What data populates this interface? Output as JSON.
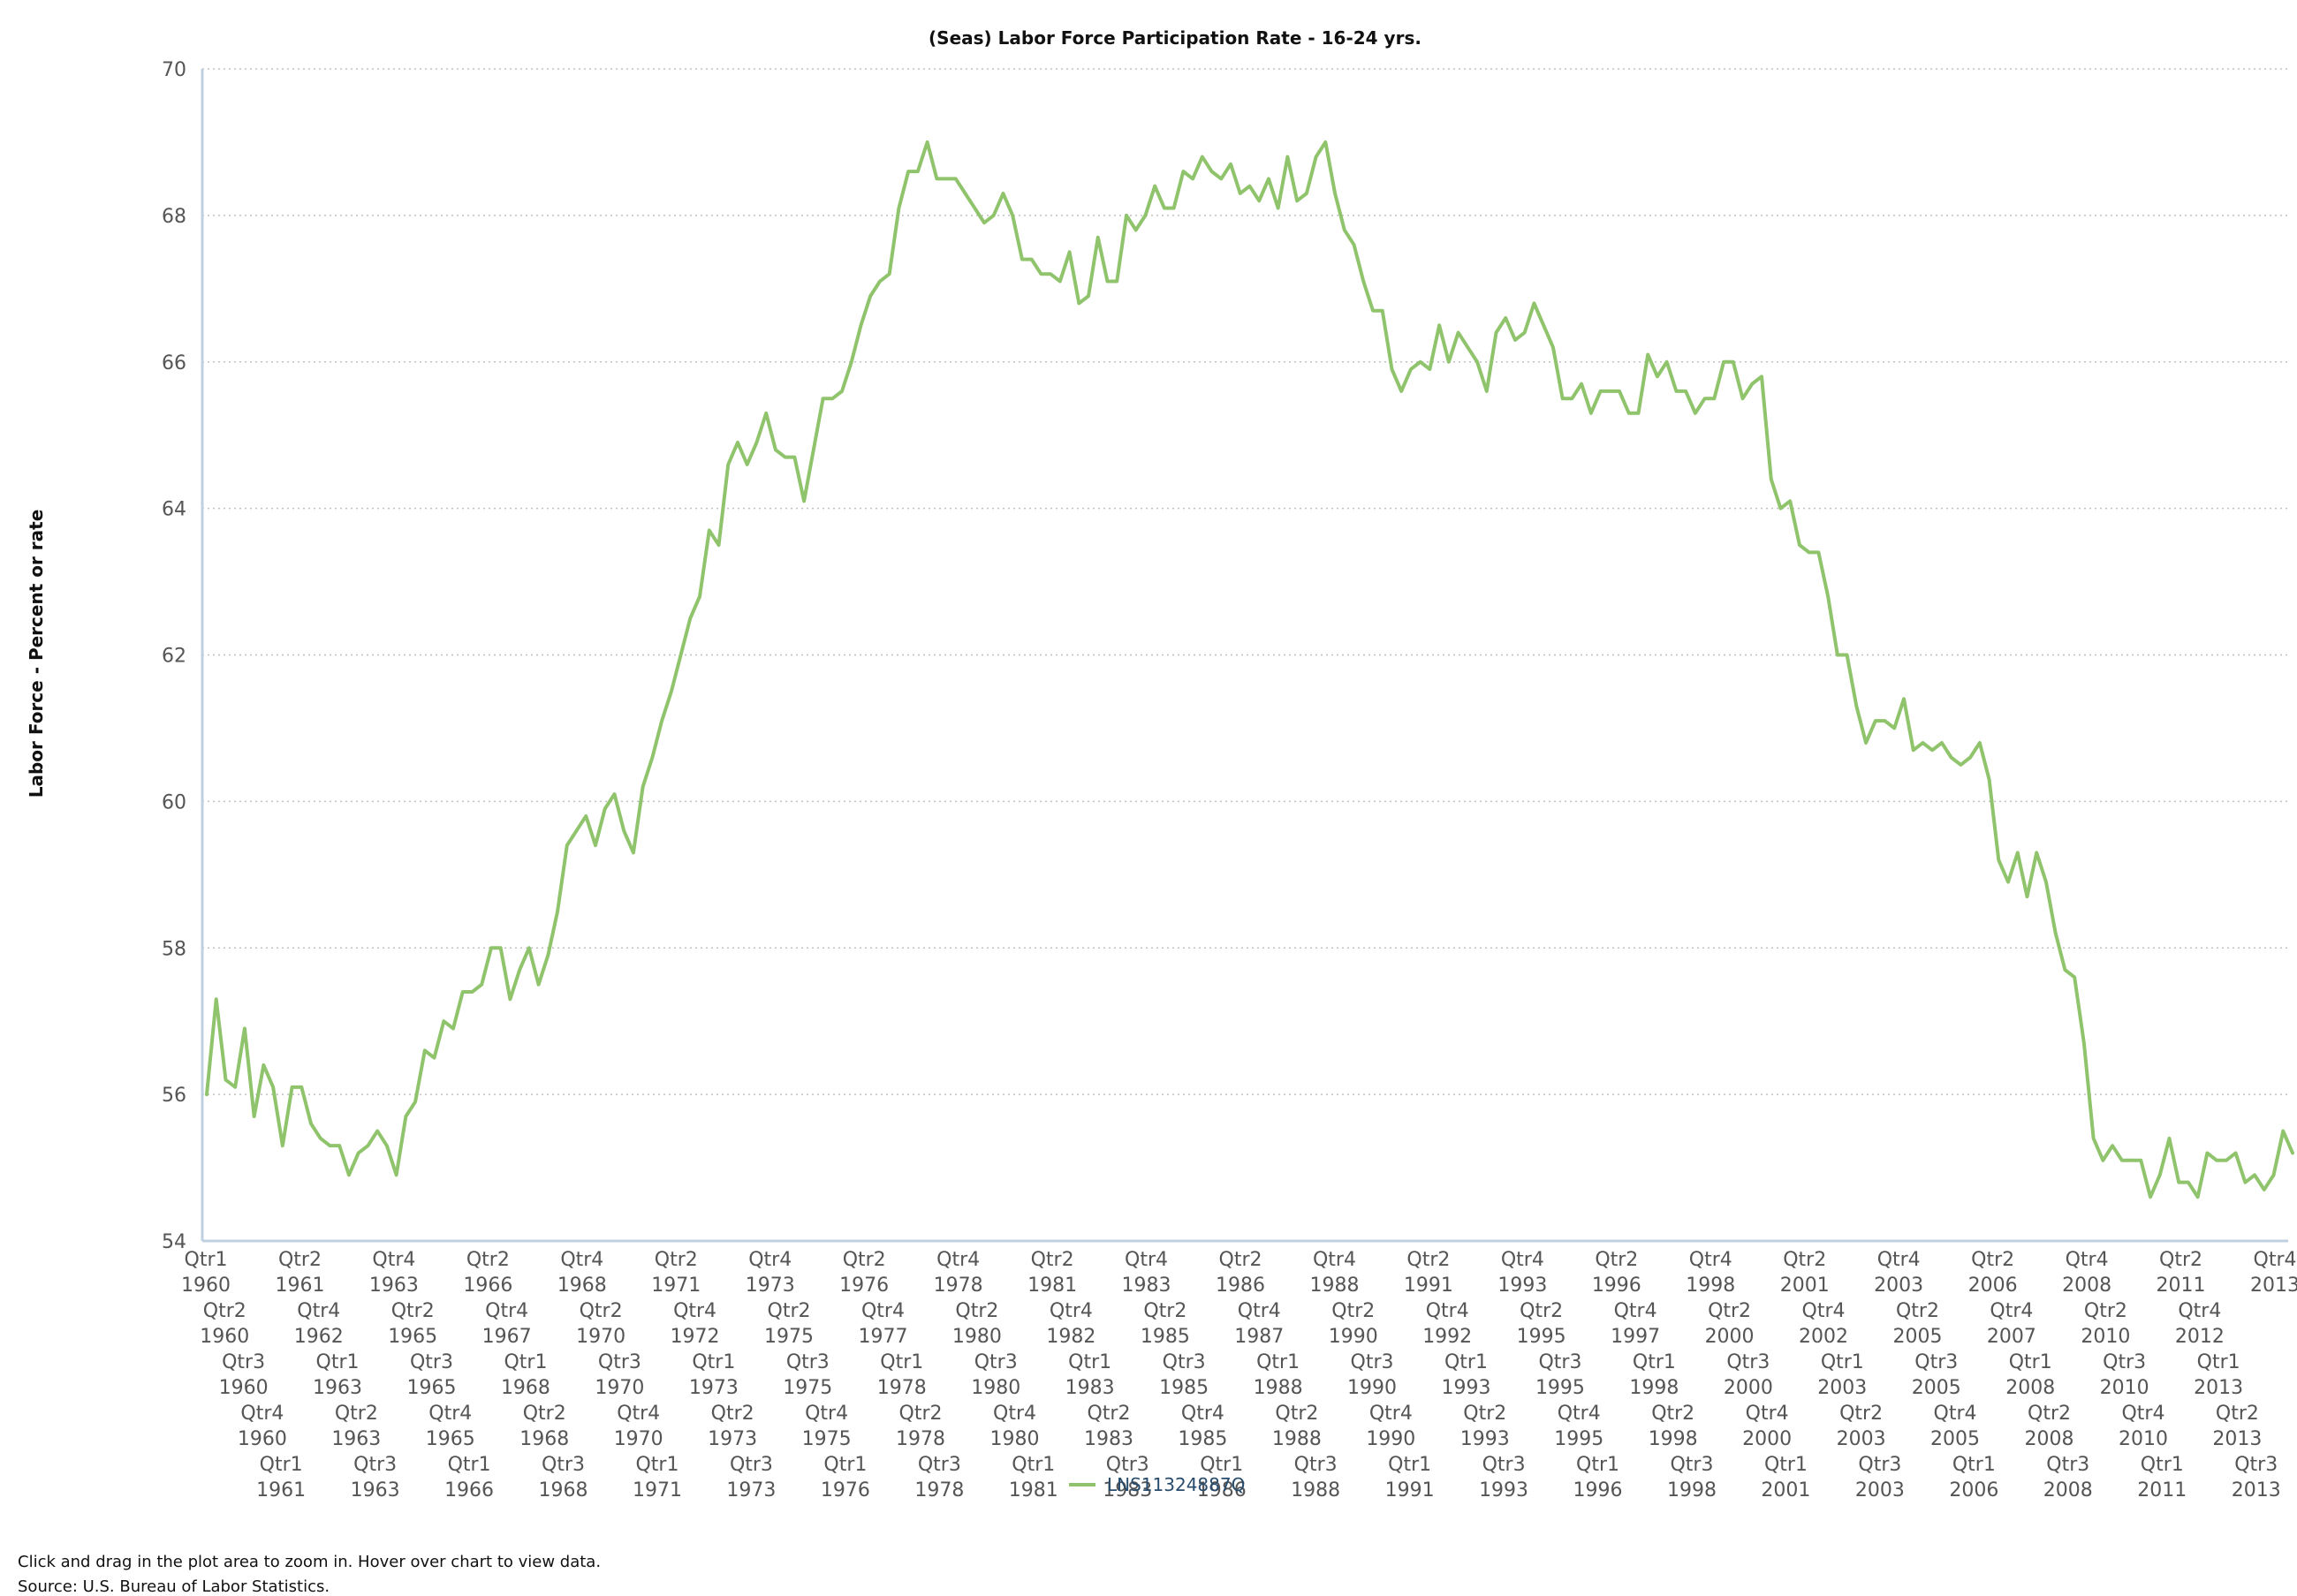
{
  "chart_data": {
    "type": "line",
    "title": "(Seas) Labor Force Participation Rate - 16-24 yrs.",
    "ylabel": "Labor Force - Percent or rate",
    "xlabel": "",
    "ylim": [
      54,
      70
    ],
    "y_ticks": [
      54,
      56,
      58,
      60,
      62,
      64,
      66,
      68,
      70
    ],
    "grid": "horizontal-dotted",
    "legend_position": "bottom-center",
    "x_start": "1960 Qtr1",
    "x_end": "2014 Qtr2",
    "x_tick_labels": [
      {
        "quarter": "Qtr1",
        "year": "1960"
      },
      {
        "quarter": "Qtr2",
        "year": "1960"
      },
      {
        "quarter": "Qtr3",
        "year": "1960"
      },
      {
        "quarter": "Qtr4",
        "year": "1960"
      },
      {
        "quarter": "Qtr1",
        "year": "1961"
      },
      {
        "quarter": "Qtr2",
        "year": "1961"
      },
      {
        "quarter": "Qtr4",
        "year": "1962"
      },
      {
        "quarter": "Qtr1",
        "year": "1963"
      },
      {
        "quarter": "Qtr2",
        "year": "1963"
      },
      {
        "quarter": "Qtr3",
        "year": "1963"
      },
      {
        "quarter": "Qtr4",
        "year": "1963"
      },
      {
        "quarter": "Qtr2",
        "year": "1965"
      },
      {
        "quarter": "Qtr3",
        "year": "1965"
      },
      {
        "quarter": "Qtr4",
        "year": "1965"
      },
      {
        "quarter": "Qtr1",
        "year": "1966"
      },
      {
        "quarter": "Qtr2",
        "year": "1966"
      },
      {
        "quarter": "Qtr4",
        "year": "1967"
      },
      {
        "quarter": "Qtr1",
        "year": "1968"
      },
      {
        "quarter": "Qtr2",
        "year": "1968"
      },
      {
        "quarter": "Qtr3",
        "year": "1968"
      },
      {
        "quarter": "Qtr4",
        "year": "1968"
      },
      {
        "quarter": "Qtr2",
        "year": "1970"
      },
      {
        "quarter": "Qtr3",
        "year": "1970"
      },
      {
        "quarter": "Qtr4",
        "year": "1970"
      },
      {
        "quarter": "Qtr1",
        "year": "1971"
      },
      {
        "quarter": "Qtr2",
        "year": "1971"
      },
      {
        "quarter": "Qtr4",
        "year": "1972"
      },
      {
        "quarter": "Qtr1",
        "year": "1973"
      },
      {
        "quarter": "Qtr2",
        "year": "1973"
      },
      {
        "quarter": "Qtr3",
        "year": "1973"
      },
      {
        "quarter": "Qtr4",
        "year": "1973"
      },
      {
        "quarter": "Qtr2",
        "year": "1975"
      },
      {
        "quarter": "Qtr3",
        "year": "1975"
      },
      {
        "quarter": "Qtr4",
        "year": "1975"
      },
      {
        "quarter": "Qtr1",
        "year": "1976"
      },
      {
        "quarter": "Qtr2",
        "year": "1976"
      },
      {
        "quarter": "Qtr4",
        "year": "1977"
      },
      {
        "quarter": "Qtr1",
        "year": "1978"
      },
      {
        "quarter": "Qtr2",
        "year": "1978"
      },
      {
        "quarter": "Qtr3",
        "year": "1978"
      },
      {
        "quarter": "Qtr4",
        "year": "1978"
      },
      {
        "quarter": "Qtr2",
        "year": "1980"
      },
      {
        "quarter": "Qtr3",
        "year": "1980"
      },
      {
        "quarter": "Qtr4",
        "year": "1980"
      },
      {
        "quarter": "Qtr1",
        "year": "1981"
      },
      {
        "quarter": "Qtr2",
        "year": "1981"
      },
      {
        "quarter": "Qtr4",
        "year": "1982"
      },
      {
        "quarter": "Qtr1",
        "year": "1983"
      },
      {
        "quarter": "Qtr2",
        "year": "1983"
      },
      {
        "quarter": "Qtr3",
        "year": "1983"
      },
      {
        "quarter": "Qtr4",
        "year": "1983"
      },
      {
        "quarter": "Qtr2",
        "year": "1985"
      },
      {
        "quarter": "Qtr3",
        "year": "1985"
      },
      {
        "quarter": "Qtr4",
        "year": "1985"
      },
      {
        "quarter": "Qtr1",
        "year": "1986"
      },
      {
        "quarter": "Qtr2",
        "year": "1986"
      },
      {
        "quarter": "Qtr4",
        "year": "1987"
      },
      {
        "quarter": "Qtr1",
        "year": "1988"
      },
      {
        "quarter": "Qtr2",
        "year": "1988"
      },
      {
        "quarter": "Qtr3",
        "year": "1988"
      },
      {
        "quarter": "Qtr4",
        "year": "1988"
      },
      {
        "quarter": "Qtr2",
        "year": "1990"
      },
      {
        "quarter": "Qtr3",
        "year": "1990"
      },
      {
        "quarter": "Qtr4",
        "year": "1990"
      },
      {
        "quarter": "Qtr1",
        "year": "1991"
      },
      {
        "quarter": "Qtr2",
        "year": "1991"
      },
      {
        "quarter": "Qtr4",
        "year": "1992"
      },
      {
        "quarter": "Qtr1",
        "year": "1993"
      },
      {
        "quarter": "Qtr2",
        "year": "1993"
      },
      {
        "quarter": "Qtr3",
        "year": "1993"
      },
      {
        "quarter": "Qtr4",
        "year": "1993"
      },
      {
        "quarter": "Qtr2",
        "year": "1995"
      },
      {
        "quarter": "Qtr3",
        "year": "1995"
      },
      {
        "quarter": "Qtr4",
        "year": "1995"
      },
      {
        "quarter": "Qtr1",
        "year": "1996"
      },
      {
        "quarter": "Qtr2",
        "year": "1996"
      },
      {
        "quarter": "Qtr4",
        "year": "1997"
      },
      {
        "quarter": "Qtr1",
        "year": "1998"
      },
      {
        "quarter": "Qtr2",
        "year": "1998"
      },
      {
        "quarter": "Qtr3",
        "year": "1998"
      },
      {
        "quarter": "Qtr4",
        "year": "1998"
      },
      {
        "quarter": "Qtr2",
        "year": "2000"
      },
      {
        "quarter": "Qtr3",
        "year": "2000"
      },
      {
        "quarter": "Qtr4",
        "year": "2000"
      },
      {
        "quarter": "Qtr1",
        "year": "2001"
      },
      {
        "quarter": "Qtr2",
        "year": "2001"
      },
      {
        "quarter": "Qtr4",
        "year": "2002"
      },
      {
        "quarter": "Qtr1",
        "year": "2003"
      },
      {
        "quarter": "Qtr2",
        "year": "2003"
      },
      {
        "quarter": "Qtr3",
        "year": "2003"
      },
      {
        "quarter": "Qtr4",
        "year": "2003"
      },
      {
        "quarter": "Qtr2",
        "year": "2005"
      },
      {
        "quarter": "Qtr3",
        "year": "2005"
      },
      {
        "quarter": "Qtr4",
        "year": "2005"
      },
      {
        "quarter": "Qtr1",
        "year": "2006"
      },
      {
        "quarter": "Qtr2",
        "year": "2006"
      },
      {
        "quarter": "Qtr4",
        "year": "2007"
      },
      {
        "quarter": "Qtr1",
        "year": "2008"
      },
      {
        "quarter": "Qtr2",
        "year": "2008"
      },
      {
        "quarter": "Qtr3",
        "year": "2008"
      },
      {
        "quarter": "Qtr4",
        "year": "2008"
      },
      {
        "quarter": "Qtr2",
        "year": "2010"
      },
      {
        "quarter": "Qtr3",
        "year": "2010"
      },
      {
        "quarter": "Qtr4",
        "year": "2010"
      },
      {
        "quarter": "Qtr1",
        "year": "2011"
      },
      {
        "quarter": "Qtr2",
        "year": "2011"
      },
      {
        "quarter": "Qtr4",
        "year": "2012"
      },
      {
        "quarter": "Qtr1",
        "year": "2013"
      },
      {
        "quarter": "Qtr2",
        "year": "2013"
      },
      {
        "quarter": "Qtr3",
        "year": "2013"
      },
      {
        "quarter": "Qtr4",
        "year": "2013"
      }
    ],
    "series": [
      {
        "name": "LNS11324887Q",
        "color": "#90c46c",
        "values": [
          56.0,
          57.3,
          56.2,
          56.1,
          56.9,
          55.7,
          56.4,
          56.1,
          55.3,
          56.1,
          56.1,
          55.6,
          55.4,
          55.3,
          55.3,
          54.9,
          55.2,
          55.3,
          55.5,
          55.3,
          54.9,
          55.7,
          55.9,
          56.6,
          56.5,
          57.0,
          56.9,
          57.4,
          57.4,
          57.5,
          58.0,
          58.0,
          57.3,
          57.7,
          58.0,
          57.5,
          57.9,
          58.5,
          59.4,
          59.6,
          59.8,
          59.4,
          59.9,
          60.1,
          59.6,
          59.3,
          60.2,
          60.6,
          61.1,
          61.5,
          62.0,
          62.5,
          62.8,
          63.7,
          63.5,
          64.6,
          64.9,
          64.6,
          64.9,
          65.3,
          64.8,
          64.7,
          64.7,
          64.1,
          64.8,
          65.5,
          65.5,
          65.6,
          66.0,
          66.5,
          66.9,
          67.1,
          67.2,
          68.1,
          68.6,
          68.6,
          69.0,
          68.5,
          68.5,
          68.5,
          68.3,
          68.1,
          67.9,
          68.0,
          68.3,
          68.0,
          67.4,
          67.4,
          67.2,
          67.2,
          67.1,
          67.5,
          66.8,
          66.9,
          67.7,
          67.1,
          67.1,
          68.0,
          67.8,
          68.0,
          68.4,
          68.1,
          68.1,
          68.6,
          68.5,
          68.8,
          68.6,
          68.5,
          68.7,
          68.3,
          68.4,
          68.2,
          68.5,
          68.1,
          68.8,
          68.2,
          68.3,
          68.8,
          69.0,
          68.3,
          67.8,
          67.6,
          67.1,
          66.7,
          66.7,
          65.9,
          65.6,
          65.9,
          66.0,
          65.9,
          66.5,
          66.0,
          66.4,
          66.2,
          66.0,
          65.6,
          66.4,
          66.6,
          66.3,
          66.4,
          66.8,
          66.5,
          66.2,
          65.5,
          65.5,
          65.7,
          65.3,
          65.6,
          65.6,
          65.6,
          65.3,
          65.3,
          66.1,
          65.8,
          66.0,
          65.6,
          65.6,
          65.3,
          65.5,
          65.5,
          66.0,
          66.0,
          65.5,
          65.7,
          65.8,
          64.4,
          64.0,
          64.1,
          63.5,
          63.4,
          63.4,
          62.8,
          62.0,
          62.0,
          61.3,
          60.8,
          61.1,
          61.1,
          61.0,
          61.4,
          60.7,
          60.8,
          60.7,
          60.8,
          60.6,
          60.5,
          60.6,
          60.8,
          60.3,
          59.2,
          58.9,
          59.3,
          58.7,
          59.3,
          58.9,
          58.2,
          57.7,
          57.6,
          56.7,
          55.4,
          55.1,
          55.3,
          55.1,
          55.1,
          55.1,
          54.6,
          54.9,
          55.4,
          54.8,
          54.8,
          54.6,
          55.2,
          55.1,
          55.1,
          55.2,
          54.8,
          54.9,
          54.7,
          54.9,
          55.5,
          55.2
        ]
      }
    ]
  },
  "footnotes": {
    "instructions": "Click and drag in the plot area to zoom in. Hover over chart to view data.",
    "source": "Source: U.S. Bureau of Labor Statistics."
  }
}
